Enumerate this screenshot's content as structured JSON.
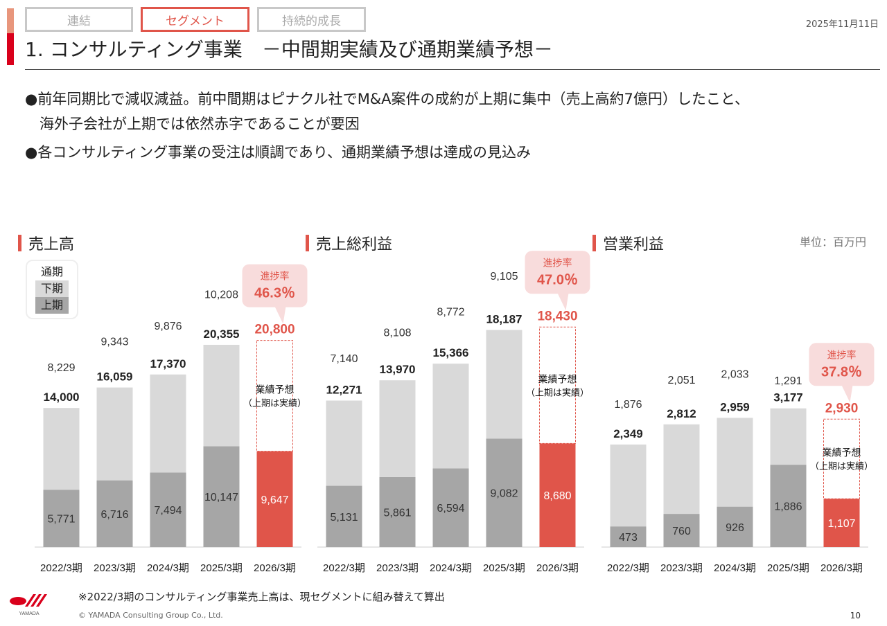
{
  "header": {
    "tabs": [
      {
        "label": "連結",
        "active": false
      },
      {
        "label": "セグメント",
        "active": true
      },
      {
        "label": "持続的成長",
        "active": false
      }
    ],
    "title": "1. コンサルティング事業　－中間期実績及び通期業績予想－",
    "date": "2025年11月11日"
  },
  "bullets": [
    "●前年同期比で減収減益。前中間期はピナクル社でM&A案件の成約が上期に集中（売上高約7億円）したこと、",
    "　海外子会社が上期では依然赤字であることが要因",
    "●各コンサルティング事業の受注は順調であり、通期業績予想は達成の見込み"
  ],
  "unit_label": "単位：百万円",
  "legend": {
    "full_year": "通期",
    "h2": "下期",
    "h1": "上期"
  },
  "colors": {
    "h1": "#a6a6a6",
    "h2": "#d9d9d9",
    "forecast": "#e0554a",
    "callout_bg": "#f8dcdc",
    "accent": "#e0554a"
  },
  "forecast_label": [
    "業績予想",
    "（上期は実績）"
  ],
  "progress_label": "進捗率",
  "footer": {
    "footnote": "※2022/3期のコンサルティング事業売上高は、現セグメントに組み替えて算出",
    "copyright": "© YAMADA Consulting Group Co., Ltd.",
    "page": "10",
    "logo_text": "YAMADA"
  },
  "chart_data": [
    {
      "type": "bar",
      "title": "売上高",
      "categories": [
        "2022/3期",
        "2023/3期",
        "2024/3期",
        "2025/3期",
        "2026/3期"
      ],
      "series": [
        {
          "name": "上期",
          "values": [
            5771,
            6716,
            7494,
            10147,
            9647
          ]
        },
        {
          "name": "下期",
          "values": [
            8229,
            9343,
            9876,
            10208,
            null
          ]
        }
      ],
      "totals": [
        "14,000",
        "16,059",
        "17,370",
        "20,355",
        "20,800"
      ],
      "h1_labels": [
        "5,771",
        "6,716",
        "7,494",
        "10,147",
        "9,647"
      ],
      "h2_labels": [
        "8,229",
        "9,343",
        "9,876",
        "10,208",
        ""
      ],
      "forecast_total": 20800,
      "progress": "46.3％",
      "ylim": [
        0,
        23000
      ]
    },
    {
      "type": "bar",
      "title": "売上総利益",
      "categories": [
        "2022/3期",
        "2023/3期",
        "2024/3期",
        "2025/3期",
        "2026/3期"
      ],
      "series": [
        {
          "name": "上期",
          "values": [
            5131,
            5861,
            6594,
            9082,
            8680
          ]
        },
        {
          "name": "下期",
          "values": [
            7140,
            8108,
            8772,
            9105,
            null
          ]
        }
      ],
      "totals": [
        "12,271",
        "13,970",
        "15,366",
        "18,187",
        "18,430"
      ],
      "h1_labels": [
        "5,131",
        "5,861",
        "6,594",
        "9,082",
        "8,680"
      ],
      "h2_labels": [
        "7,140",
        "8,108",
        "8,772",
        "9,105",
        ""
      ],
      "forecast_total": 18430,
      "progress": "47.0％",
      "ylim": [
        0,
        21000
      ]
    },
    {
      "type": "bar",
      "title": "営業利益",
      "categories": [
        "2022/3期",
        "2023/3期",
        "2024/3期",
        "2025/3期",
        "2026/3期"
      ],
      "series": [
        {
          "name": "上期",
          "values": [
            473,
            760,
            926,
            1886,
            1107
          ]
        },
        {
          "name": "下期",
          "values": [
            1876,
            2051,
            2033,
            1291,
            null
          ]
        }
      ],
      "totals": [
        "2,349",
        "2,812",
        "2,959",
        "3,177",
        "2,930"
      ],
      "h1_labels": [
        "473",
        "760",
        "926",
        "1,886",
        "1,107"
      ],
      "h2_labels": [
        "1,876",
        "2,051",
        "2,033",
        "1,291",
        ""
      ],
      "forecast_total": 2930,
      "progress": "37.8％",
      "ylim": [
        0,
        4600
      ]
    }
  ]
}
